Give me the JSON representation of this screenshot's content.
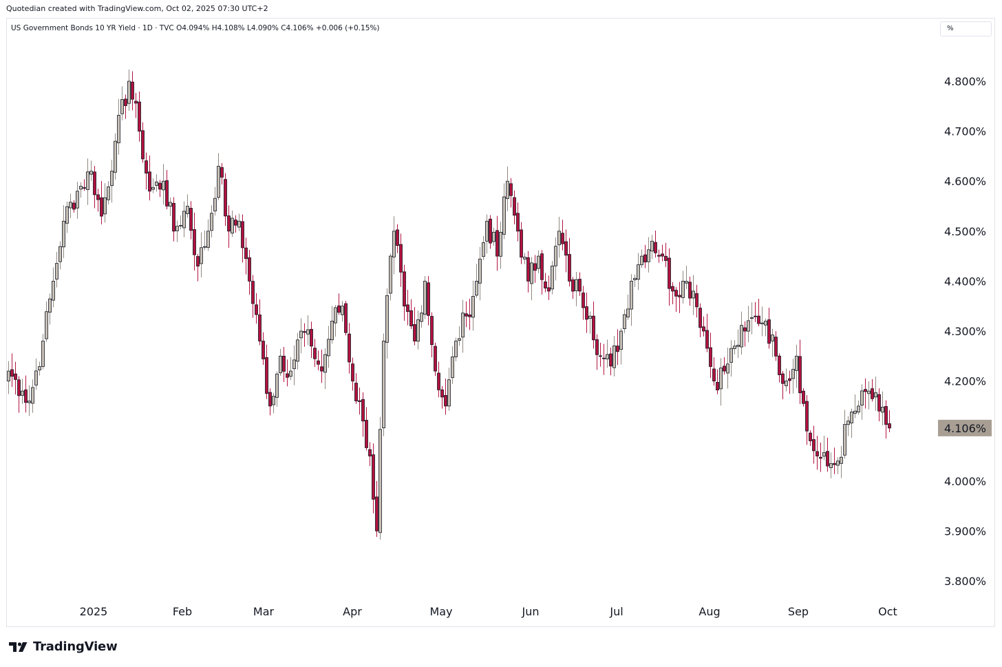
{
  "header": {
    "credit": "Quotedian created with TradingView.com, Oct 02, 2025 07:30 UTC+2",
    "legend": "US Government Bonds 10 YR Yield · 1D · TVC  O4.094%  H4.108%  L4.090%  C4.106%  +0.006 (+0.15%)",
    "unit": "%"
  },
  "footer": {
    "brand": "TradingView"
  },
  "colors": {
    "up": "#c8c0b6",
    "down": "#b2123f",
    "outline": "#131722",
    "last_bg": "#a89e94"
  },
  "chart_data": {
    "type": "candlestick",
    "title": "US Government Bonds 10 YR Yield · 1D · TVC",
    "xlabel": "",
    "ylabel": "",
    "ylim": [
      3.75,
      4.9
    ],
    "y_ticks": [
      "4.800%",
      "4.700%",
      "4.600%",
      "4.500%",
      "4.400%",
      "4.300%",
      "4.200%",
      "4.000%",
      "3.900%",
      "3.800%"
    ],
    "x_ticks": [
      "2025",
      "Feb",
      "Mar",
      "Apr",
      "May",
      "Jun",
      "Jul",
      "Aug",
      "Sep",
      "Oct"
    ],
    "last_price_label": "4.106%",
    "last_value": 4.106,
    "anchors": [
      [
        0,
        4.22
      ],
      [
        4,
        4.18
      ],
      [
        6,
        4.16
      ],
      [
        10,
        4.28
      ],
      [
        13,
        4.4
      ],
      [
        16,
        4.52
      ],
      [
        20,
        4.58
      ],
      [
        24,
        4.62
      ],
      [
        27,
        4.53
      ],
      [
        31,
        4.68
      ],
      [
        35,
        4.8
      ],
      [
        38,
        4.7
      ],
      [
        41,
        4.58
      ],
      [
        45,
        4.6
      ],
      [
        48,
        4.5
      ],
      [
        52,
        4.55
      ],
      [
        55,
        4.43
      ],
      [
        58,
        4.5
      ],
      [
        61,
        4.63
      ],
      [
        64,
        4.5
      ],
      [
        67,
        4.52
      ],
      [
        70,
        4.4
      ],
      [
        73,
        4.28
      ],
      [
        76,
        4.15
      ],
      [
        79,
        4.25
      ],
      [
        82,
        4.22
      ],
      [
        85,
        4.3
      ],
      [
        88,
        4.27
      ],
      [
        91,
        4.22
      ],
      [
        94,
        4.32
      ],
      [
        97,
        4.35
      ],
      [
        100,
        4.2
      ],
      [
        103,
        4.12
      ],
      [
        105,
        4.05
      ],
      [
        107,
        3.9
      ],
      [
        109,
        4.28
      ],
      [
        112,
        4.5
      ],
      [
        115,
        4.35
      ],
      [
        118,
        4.28
      ],
      [
        121,
        4.4
      ],
      [
        124,
        4.22
      ],
      [
        127,
        4.15
      ],
      [
        130,
        4.28
      ],
      [
        133,
        4.33
      ],
      [
        136,
        4.4
      ],
      [
        139,
        4.52
      ],
      [
        142,
        4.45
      ],
      [
        145,
        4.6
      ],
      [
        148,
        4.5
      ],
      [
        151,
        4.4
      ],
      [
        154,
        4.45
      ],
      [
        157,
        4.38
      ],
      [
        160,
        4.5
      ],
      [
        163,
        4.4
      ],
      [
        166,
        4.38
      ],
      [
        169,
        4.33
      ],
      [
        172,
        4.25
      ],
      [
        175,
        4.23
      ],
      [
        178,
        4.3
      ],
      [
        181,
        4.4
      ],
      [
        184,
        4.45
      ],
      [
        187,
        4.48
      ],
      [
        190,
        4.45
      ],
      [
        193,
        4.38
      ],
      [
        196,
        4.4
      ],
      [
        199,
        4.38
      ],
      [
        202,
        4.3
      ],
      [
        205,
        4.2
      ],
      [
        208,
        4.22
      ],
      [
        211,
        4.27
      ],
      [
        214,
        4.3
      ],
      [
        217,
        4.33
      ],
      [
        220,
        4.32
      ],
      [
        223,
        4.25
      ],
      [
        226,
        4.2
      ],
      [
        229,
        4.25
      ],
      [
        232,
        4.1
      ],
      [
        235,
        4.05
      ],
      [
        238,
        4.03
      ],
      [
        241,
        4.04
      ],
      [
        244,
        4.12
      ],
      [
        247,
        4.15
      ],
      [
        250,
        4.18
      ],
      [
        253,
        4.14
      ],
      [
        256,
        4.106
      ]
    ]
  }
}
